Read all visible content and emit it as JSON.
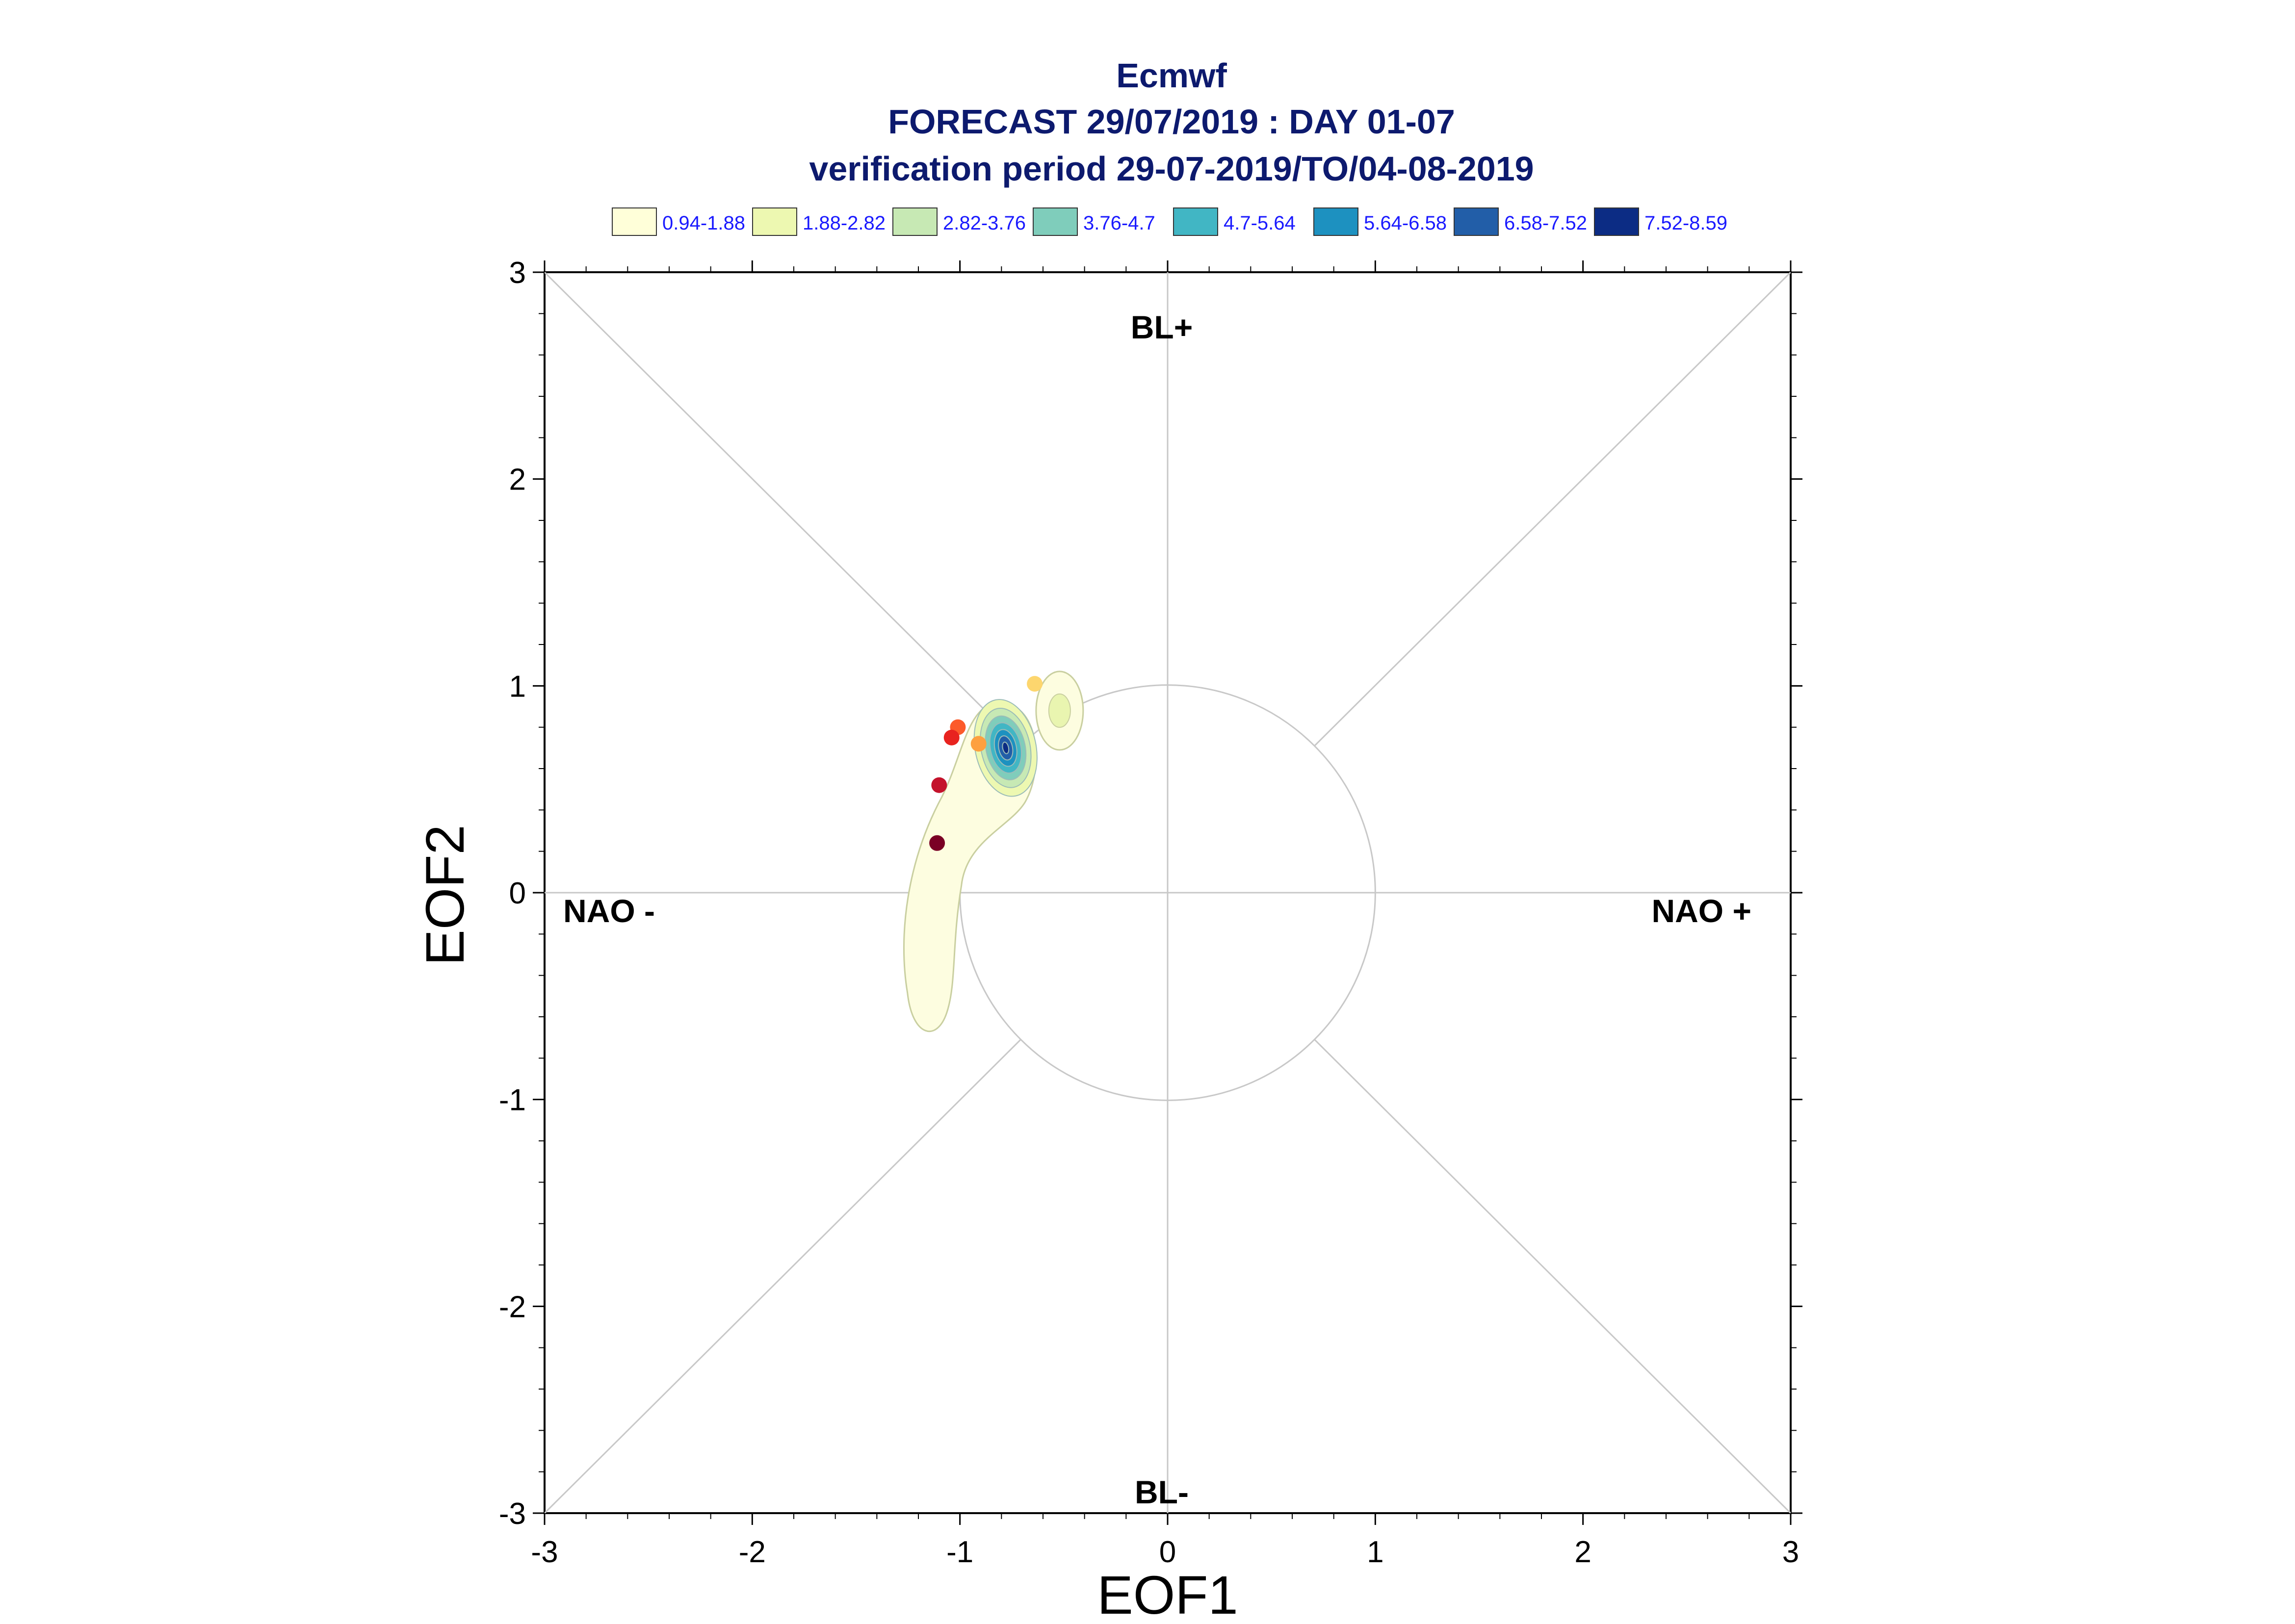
{
  "chart_data": {
    "type": "scatter",
    "title": "Ecmwf",
    "subtitle": "FORECAST 29/07/2019 : DAY 01-07",
    "subtitle2": "verification period 29-07-2019/TO/04-08-2019",
    "xlabel": "EOF1",
    "ylabel": "EOF2",
    "xlim": [
      -3,
      3
    ],
    "ylim": [
      -3,
      3
    ],
    "xticks": [
      "-3",
      "-2",
      "-1",
      "0",
      "1",
      "2",
      "3"
    ],
    "yticks": [
      "-3",
      "-2",
      "-1",
      "0",
      "1",
      "2",
      "3"
    ],
    "regimes": {
      "top": "BL+",
      "bottom": "BL-",
      "left": "NAO -",
      "right": "NAO +"
    },
    "legend": {
      "placement": "top",
      "entries": [
        {
          "label": "0.94-1.88",
          "color": "#ffffd9"
        },
        {
          "label": "1.88-2.82",
          "color": "#edf8b1"
        },
        {
          "label": "2.82-3.76",
          "color": "#c7e9b4"
        },
        {
          "label": "3.76-4.7",
          "color": "#7fcdbb"
        },
        {
          "label": "4.7-5.64",
          "color": "#41b6c4"
        },
        {
          "label": "5.64-6.58",
          "color": "#1d91c0"
        },
        {
          "label": "6.58-7.52",
          "color": "#225ea8"
        },
        {
          "label": "7.52-8.59",
          "color": "#0c2c84"
        }
      ]
    },
    "points": [
      {
        "x": -0.64,
        "y": 1.01,
        "color": "#fdd66e"
      },
      {
        "x": -1.01,
        "y": 0.8,
        "color": "#fc5a2a"
      },
      {
        "x": -1.04,
        "y": 0.75,
        "color": "#e8231f"
      },
      {
        "x": -0.91,
        "y": 0.72,
        "color": "#fda040"
      },
      {
        "x": -1.1,
        "y": 0.52,
        "color": "#c4122b"
      },
      {
        "x": -1.11,
        "y": 0.24,
        "color": "#7a0025"
      }
    ],
    "density_center": {
      "x": -0.78,
      "y": 0.7
    },
    "reference_circle_radius": 1,
    "grid": "crosshair and diagonals"
  }
}
